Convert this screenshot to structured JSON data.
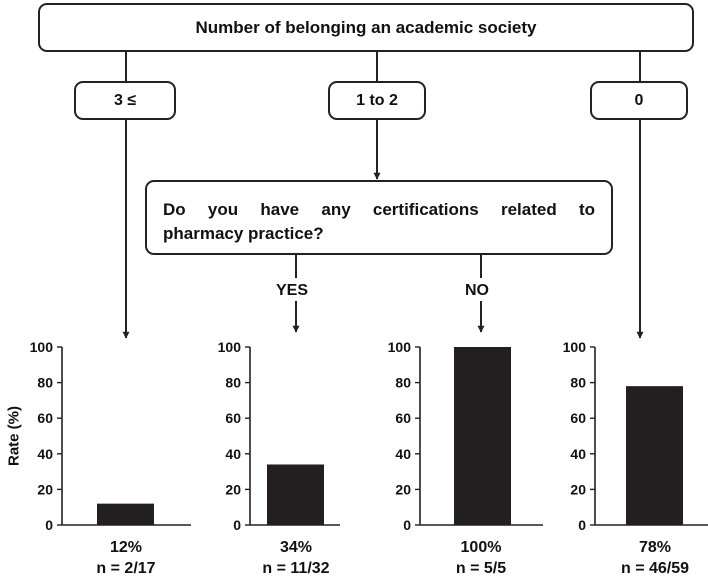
{
  "header": {
    "title": "Number of belonging an academic society"
  },
  "categories": [
    {
      "label": "3 ≤"
    },
    {
      "label": "1 to 2"
    },
    {
      "label": "0"
    }
  ],
  "question": {
    "line1": "Do you have any certifications related to",
    "line2": "pharmacy practice?"
  },
  "branches": {
    "yes": "YES",
    "no": "NO"
  },
  "y_axis_label": "Rate (%)",
  "chart_data": {
    "type": "bar",
    "ylabel": "Rate (%)",
    "ylim": [
      0,
      100
    ],
    "yticks": [
      0,
      20,
      40,
      60,
      80,
      100
    ],
    "panels": [
      {
        "value": 12,
        "percent_label": "12%",
        "n_label": "n = 2/17"
      },
      {
        "value": 34,
        "percent_label": "34%",
        "n_label": "n = 11/32"
      },
      {
        "value": 100,
        "percent_label": "100%",
        "n_label": "n = 5/5"
      },
      {
        "value": 78,
        "percent_label": "78%",
        "n_label": "n = 46/59"
      }
    ]
  },
  "colors": {
    "bar": "#231f20",
    "line": "#222222"
  }
}
